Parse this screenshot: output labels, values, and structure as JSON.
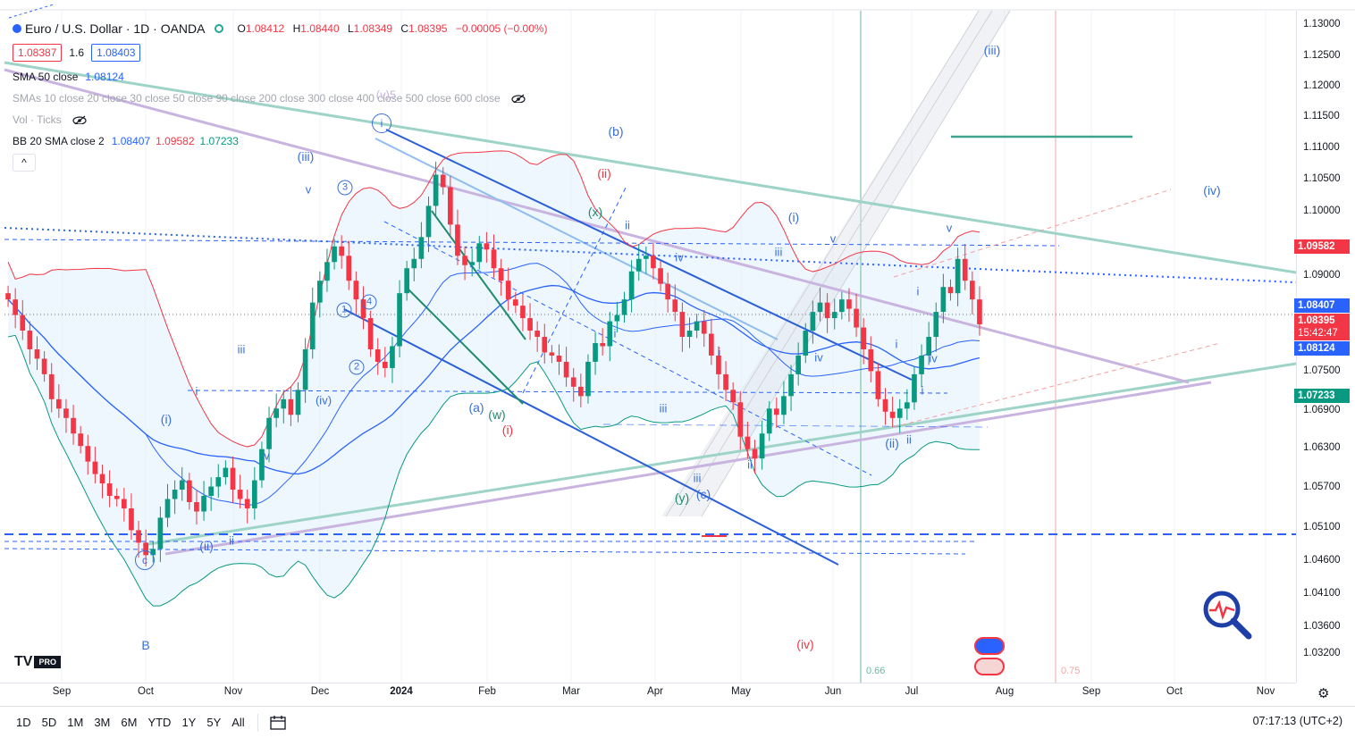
{
  "symbol": {
    "title": "Euro / U.S. Dollar · 1D · OANDA",
    "ohlc": [
      {
        "k": "O",
        "v": "1.08412"
      },
      {
        "k": "H",
        "v": "1.08440"
      },
      {
        "k": "L",
        "v": "1.08349"
      },
      {
        "k": "C",
        "v": "1.08395"
      }
    ],
    "change": "−0.00005 (−0.00%)",
    "bid": "1.08387",
    "spread": "1.6",
    "ask": "1.08403"
  },
  "indicators": {
    "sma50": {
      "name": "SMA 50 close",
      "value": "1.08124"
    },
    "smas": {
      "name": "SMAs 10 close 20 close 30 close 50 close 90 close 200 close 300 close 400 close 500 close 600 close"
    },
    "vol": {
      "name": "Vol · Ticks"
    },
    "bb": {
      "name": "BB 20 SMA close 2",
      "basis": "1.08407",
      "upper": "1.09582",
      "lower": "1.07233"
    },
    "collapse_label": "^"
  },
  "price_scale": {
    "ticks": [
      "1.13000",
      "1.12500",
      "1.12000",
      "1.11500",
      "1.11000",
      "1.10500",
      "1.10000",
      "1.09000",
      "1.07500",
      "1.06900",
      "1.06300",
      "1.05700",
      "1.05100",
      "1.04600",
      "1.04100",
      "1.03600",
      "1.03200"
    ],
    "tags": [
      {
        "value": "1.09582",
        "color": "#f23645"
      },
      {
        "value": "1.08407",
        "color": "#2962ff"
      },
      {
        "value": "1.08395",
        "color": "#f23645"
      },
      {
        "value": "15:42:47",
        "color": "#f23645"
      },
      {
        "value": "1.08124",
        "color": "#2962ff"
      },
      {
        "value": "1.07233",
        "color": "#089981"
      }
    ]
  },
  "time_axis": {
    "labels": [
      "Sep",
      "Oct",
      "Nov",
      "Dec",
      "2024",
      "Feb",
      "Mar",
      "Apr",
      "May",
      "Jun",
      "Jul",
      "Aug",
      "Sep",
      "Oct",
      "Nov"
    ]
  },
  "bottom_bar": {
    "ranges": [
      "1D",
      "5D",
      "1M",
      "3M",
      "6M",
      "YTD",
      "1Y",
      "5Y",
      "All"
    ],
    "clock": "07:17:13 (UTC+2)"
  },
  "logo": {
    "text": "TV",
    "badge": "PRO"
  },
  "fib_labels": {
    "a": "0.66",
    "b": "0.75"
  },
  "wave_labels": [
    "(iii)",
    "(b)",
    "(ii)",
    "(iii)",
    "(iv)",
    "(i)",
    "v",
    "iii",
    "i",
    "iv",
    "(x)",
    "ii",
    "iv",
    "(i)",
    "v",
    "iii",
    "iii",
    "i",
    "iv",
    "i",
    "iv",
    "(a)",
    "(w)",
    "(i)",
    "iii",
    "i",
    "ii",
    "(ii)",
    "ii",
    "iv",
    "(y)",
    "(c)",
    "iii",
    "iv",
    "ii",
    "(iv)",
    "B",
    "c",
    "(ii)",
    "ii",
    "i",
    "i",
    "(v)5",
    "1",
    "2",
    "3",
    "4",
    "i",
    "iv",
    "v",
    "(iv)"
  ],
  "chart_data": {
    "type": "candlestick",
    "title": "Euro / U.S. Dollar · 1D · OANDA",
    "x_range": [
      "2023-09",
      "2024-11"
    ],
    "ylim": [
      1.03,
      1.132
    ],
    "last_close": 1.08395,
    "series": [
      {
        "name": "SMA 50 close",
        "last": 1.08124
      },
      {
        "name": "BB 20 SMA close 2 basis",
        "last": 1.08407
      },
      {
        "name": "BB upper",
        "last": 1.09582
      },
      {
        "name": "BB lower",
        "last": 1.07233
      }
    ],
    "closes": [
      1.088,
      1.0855,
      1.083,
      1.08,
      1.0785,
      1.076,
      1.072,
      1.0705,
      1.069,
      1.0665,
      1.0645,
      1.062,
      1.06,
      1.0585,
      1.0565,
      1.056,
      1.0545,
      1.051,
      1.049,
      1.047,
      1.048,
      1.053,
      1.056,
      1.0575,
      1.059,
      1.0555,
      1.054,
      1.0565,
      1.058,
      1.0595,
      1.061,
      1.0575,
      1.056,
      1.0545,
      1.059,
      1.064,
      1.069,
      1.0705,
      1.072,
      1.0695,
      1.0735,
      1.08,
      1.0875,
      1.091,
      1.094,
      1.0965,
      1.095,
      1.091,
      1.088,
      1.085,
      1.08,
      1.078,
      1.077,
      1.0805,
      1.089,
      1.093,
      1.0945,
      1.098,
      1.103,
      1.108,
      1.106,
      1.1,
      1.095,
      1.0935,
      1.094,
      1.097,
      1.096,
      1.093,
      1.091,
      1.088,
      1.087,
      1.085,
      1.083,
      1.082,
      1.0795,
      1.079,
      1.078,
      1.0755,
      1.074,
      1.0725,
      1.078,
      1.081,
      1.0805,
      1.0845,
      1.0855,
      1.088,
      1.0925,
      1.0945,
      1.095,
      1.093,
      1.0905,
      1.088,
      1.086,
      1.082,
      1.083,
      1.0845,
      1.0825,
      1.079,
      1.076,
      1.0735,
      1.0715,
      1.066,
      1.064,
      1.0625,
      1.0665,
      1.0705,
      1.0695,
      1.0725,
      1.076,
      1.079,
      1.083,
      1.086,
      1.0875,
      1.085,
      1.086,
      1.088,
      1.0865,
      1.0835,
      1.08,
      1.0765,
      1.072,
      1.07,
      1.069,
      1.0705,
      1.0715,
      1.076,
      1.079,
      1.082,
      1.086,
      1.09,
      1.089,
      1.0945,
      1.091,
      1.088,
      1.084
    ]
  }
}
